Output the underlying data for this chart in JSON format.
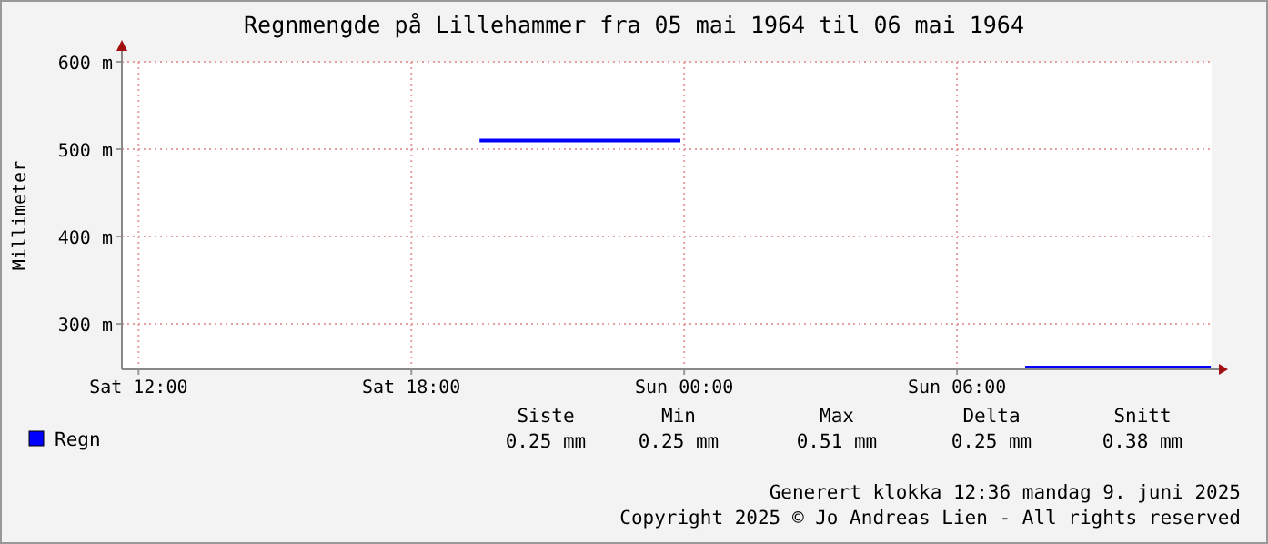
{
  "chart_data": {
    "type": "line",
    "title": "Regnmengde på Lillehammer fra 05 mai 1964 til 06 mai 1964",
    "ylabel": "Millimeter",
    "series": [
      {
        "name": "Regn",
        "color": "#0000ff",
        "x": [
          "1964-05-05T19:30",
          "1964-05-05T23:55"
        ],
        "values": [
          510,
          510
        ]
      },
      {
        "color": "#0000ff",
        "x": [
          "1964-05-06T07:30",
          "1964-05-06T11:35"
        ],
        "values": [
          250,
          250
        ]
      }
    ],
    "xlim": [
      "1964-05-05T11:38",
      "1964-05-06T11:36"
    ],
    "xticks": [
      {
        "value": "1964-05-05T12:00",
        "label": "Sat 12:00"
      },
      {
        "value": "1964-05-05T18:00",
        "label": "Sat 18:00"
      },
      {
        "value": "1964-05-06T00:00",
        "label": "Sun 00:00"
      },
      {
        "value": "1964-05-06T06:00",
        "label": "Sun 06:00"
      }
    ],
    "ylim": [
      248,
      600
    ],
    "yticks": [
      {
        "value": 300,
        "label": "300 m"
      },
      {
        "value": 400,
        "label": "400 m"
      },
      {
        "value": 500,
        "label": "500 m"
      },
      {
        "value": 600,
        "label": "600 m"
      }
    ],
    "grid": true,
    "legend": "bottom left",
    "marker": "none",
    "line_style": "solid",
    "annotations": [
      "Siste",
      "Min",
      "Max",
      "Delta",
      "Snitt",
      "0.25 mm",
      "0.25 mm",
      "0.51 mm",
      "0.25 mm",
      "0.38 mm",
      "Generert klokka 12:36 mandag 9. juni 2025",
      "Copyright 2025 © Jo Andreas Lien - All rights reserved"
    ]
  }
}
